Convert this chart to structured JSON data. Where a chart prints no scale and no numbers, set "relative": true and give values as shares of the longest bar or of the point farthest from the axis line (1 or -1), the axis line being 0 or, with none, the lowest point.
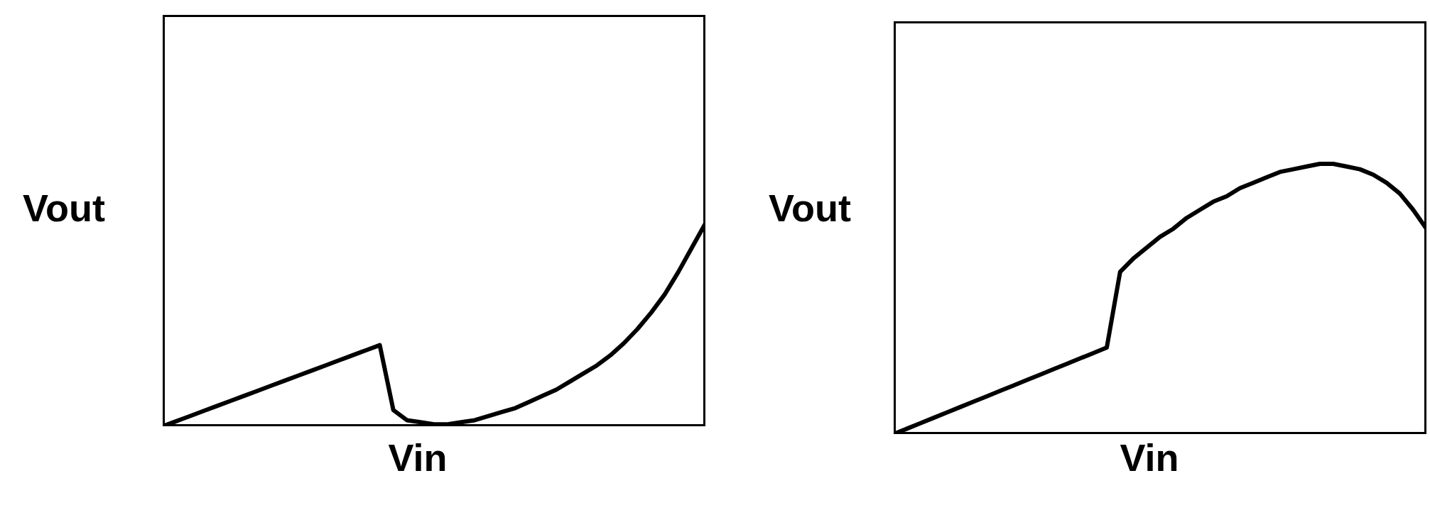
{
  "chart_data": [
    {
      "type": "line",
      "relative": true,
      "xlabel": "Vin",
      "ylabel": "Vout",
      "color": "#000000",
      "categories": [
        null,
        null,
        null,
        null,
        null,
        null,
        null,
        null,
        null,
        null,
        null,
        null,
        null,
        null,
        null,
        null,
        null,
        null,
        null,
        null,
        null,
        null,
        null,
        null,
        null,
        null,
        null,
        null,
        null,
        null,
        null,
        null,
        null,
        null,
        null,
        null,
        null,
        null,
        null,
        null,
        null
      ],
      "values": [
        0,
        0.025,
        0.05,
        0.075,
        0.1,
        0.125,
        0.15,
        0.175,
        0.2,
        0.225,
        0.25,
        0.275,
        0.3,
        0.325,
        0.35,
        0.375,
        0.4,
        0.08,
        0.03,
        0.02,
        0.01,
        0.01,
        0.02,
        0.03,
        0.05,
        0.07,
        0.09,
        0.12,
        0.15,
        0.18,
        0.22,
        0.26,
        0.3,
        0.35,
        0.41,
        0.48,
        0.56,
        0.65,
        0.76,
        0.88,
        1
      ]
    },
    {
      "type": "line",
      "relative": true,
      "xlabel": "Vin",
      "ylabel": "Vout",
      "color": "#000000",
      "categories": [
        null,
        null,
        null,
        null,
        null,
        null,
        null,
        null,
        null,
        null,
        null,
        null,
        null,
        null,
        null,
        null,
        null,
        null,
        null,
        null,
        null,
        null,
        null,
        null,
        null,
        null,
        null,
        null,
        null,
        null,
        null,
        null,
        null,
        null,
        null,
        null,
        null,
        null,
        null,
        null,
        null
      ],
      "values": [
        0,
        0.02,
        0.04,
        0.06,
        0.08,
        0.1,
        0.12,
        0.14,
        0.16,
        0.18,
        0.2,
        0.22,
        0.24,
        0.26,
        0.28,
        0.3,
        0.32,
        0.6,
        0.65,
        0.69,
        0.73,
        0.76,
        0.8,
        0.83,
        0.86,
        0.88,
        0.91,
        0.93,
        0.95,
        0.97,
        0.98,
        0.99,
        1,
        1,
        0.99,
        0.98,
        0.96,
        0.93,
        0.89,
        0.83,
        0.76
      ]
    }
  ]
}
